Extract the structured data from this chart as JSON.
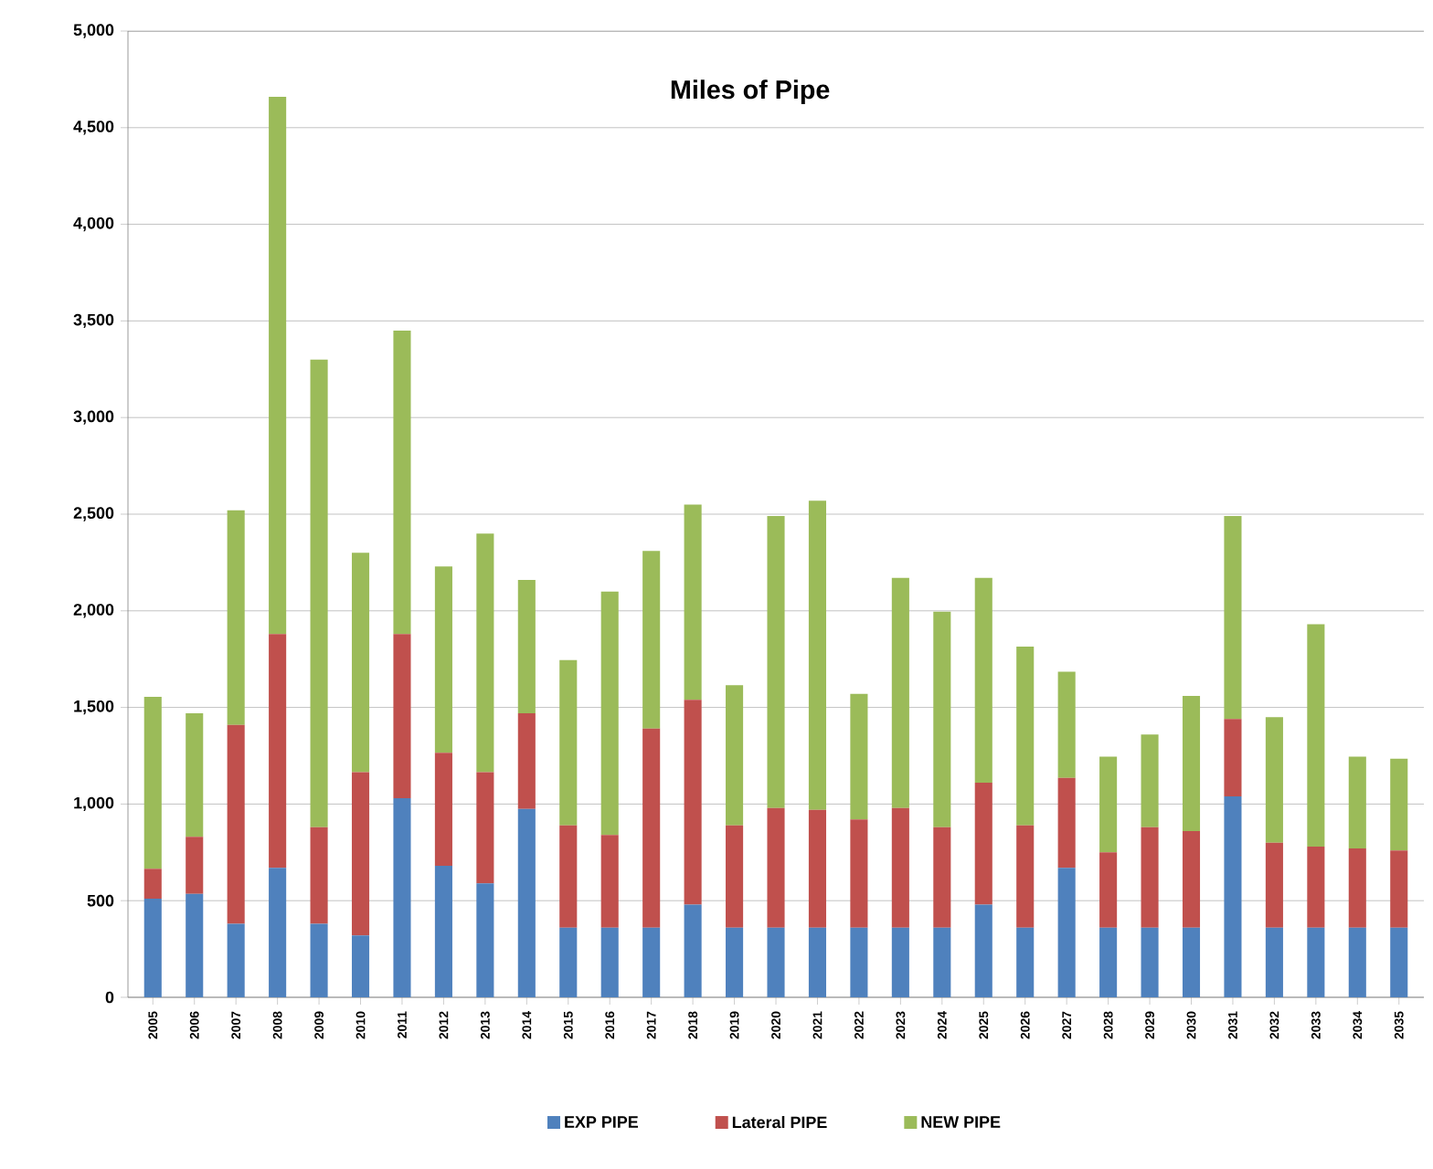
{
  "chart_data": {
    "type": "bar",
    "title": "Miles of Pipe",
    "stacked": true,
    "grid": "y",
    "legend": "bottom",
    "categories": [
      "2005",
      "2006",
      "2007",
      "2008",
      "2009",
      "2010",
      "2011",
      "2012",
      "2013",
      "2014",
      "2015",
      "2016",
      "2017",
      "2018",
      "2019",
      "2020",
      "2021",
      "2022",
      "2023",
      "2024",
      "2025",
      "2026",
      "2027",
      "2028",
      "2029",
      "2030",
      "2031",
      "2032",
      "2033",
      "2034",
      "2035"
    ],
    "ylim": [
      0,
      5000
    ],
    "yticks": [
      0,
      500,
      {
        "value": 1000,
        "label": "1,000"
      },
      {
        "value": 1500,
        "label": "1,500"
      },
      {
        "value": 2000,
        "label": "2,000"
      },
      {
        "value": 2500,
        "label": "2,500"
      },
      {
        "value": 3000,
        "label": "3,000"
      },
      {
        "value": 3500,
        "label": "3,500"
      },
      {
        "value": 4000,
        "label": "4,000"
      },
      {
        "value": 4500,
        "label": "4,500"
      },
      {
        "value": 5000,
        "label": "5,000"
      }
    ],
    "series": [
      {
        "name": "EXP PIPE",
        "color": "#4f81bd",
        "values": [
          510,
          535,
          380,
          670,
          380,
          320,
          1030,
          680,
          590,
          975,
          360,
          360,
          360,
          480,
          360,
          360,
          360,
          360,
          360,
          360,
          480,
          360,
          670,
          360,
          360,
          360,
          1040,
          360,
          360,
          360,
          360
        ]
      },
      {
        "name": "Lateral PIPE",
        "color": "#c0504d",
        "values": [
          155,
          295,
          1030,
          1210,
          500,
          845,
          850,
          585,
          575,
          495,
          530,
          480,
          1030,
          1060,
          530,
          620,
          610,
          560,
          620,
          520,
          630,
          530,
          465,
          390,
          520,
          500,
          400,
          440,
          420,
          410,
          400
        ]
      },
      {
        "name": "NEW PIPE",
        "color": "#9bbb59",
        "values": [
          890,
          640,
          1110,
          2780,
          2420,
          1135,
          1570,
          965,
          1235,
          690,
          855,
          1260,
          920,
          1010,
          725,
          1510,
          1600,
          650,
          1190,
          1115,
          1060,
          925,
          550,
          495,
          480,
          700,
          1050,
          650,
          1150,
          475,
          475
        ]
      }
    ]
  }
}
